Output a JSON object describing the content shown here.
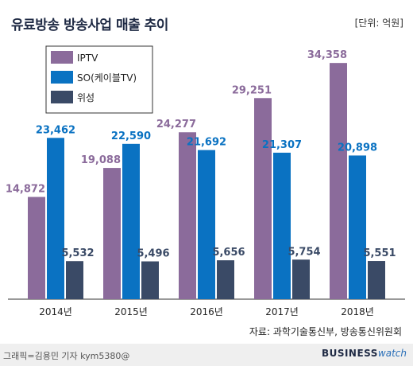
{
  "title": "유료방송 방송사업 매출 추이",
  "unit": "[단위: 억원]",
  "source": "자료: 과학기술통신부, 방송통신위원회",
  "credit": "그래픽=김용민 기자 kym5380@",
  "brand": {
    "part1": "BUSINESS",
    "part2": "watch"
  },
  "chart_data": {
    "type": "bar",
    "categories": [
      "2014년",
      "2015년",
      "2016년",
      "2017년",
      "2018년"
    ],
    "series": [
      {
        "name": "IPTV",
        "color": "#8b6b9b",
        "values": [
          14872,
          19088,
          24277,
          29251,
          34358
        ]
      },
      {
        "name": "SO(케이블TV)",
        "color": "#0a72c2",
        "values": [
          23462,
          22590,
          21692,
          21307,
          20898
        ]
      },
      {
        "name": "위성",
        "color": "#3a4a66",
        "values": [
          5532,
          5496,
          5656,
          5754,
          5551
        ]
      }
    ],
    "legend": "top-left",
    "ylim": [
      0,
      36000
    ],
    "grid": false
  }
}
